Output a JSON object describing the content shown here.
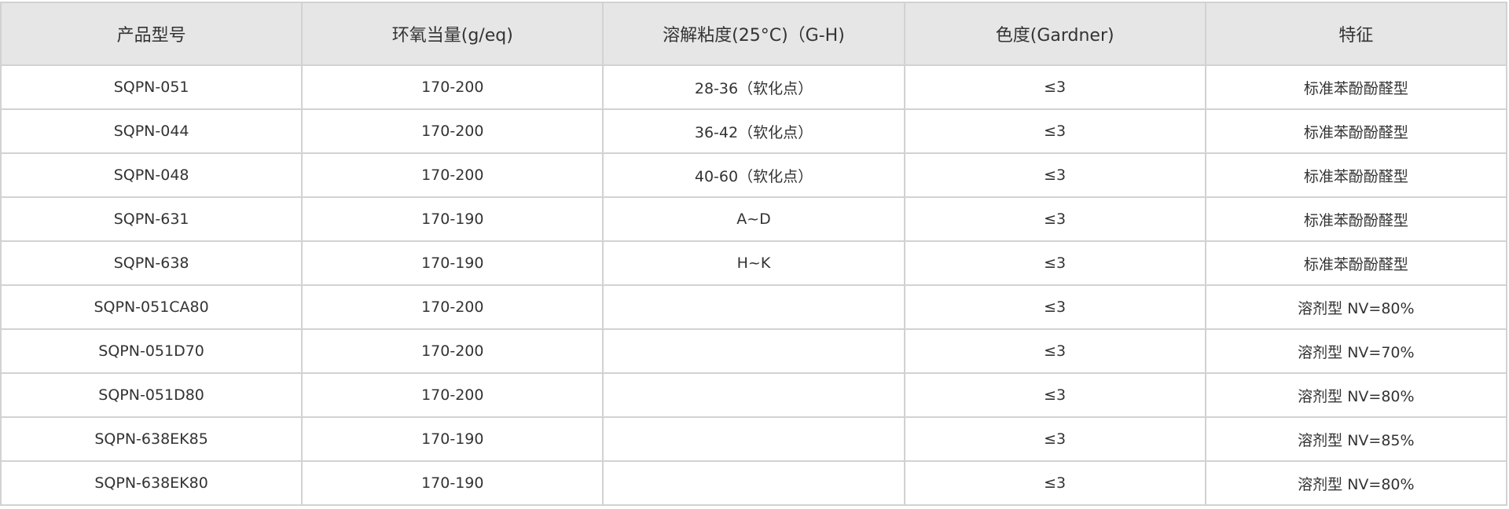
{
  "table": {
    "headers": [
      "产品型号",
      "环氧当量(g/eq)",
      "溶解粘度(25°C)（G-H)",
      "色度(Gardner)",
      "特征"
    ],
    "rows": [
      [
        "SQPN-051",
        "170-200",
        "28-36（软化点）",
        "≤3",
        "标准苯酚酚醛型"
      ],
      [
        "SQPN-044",
        "170-200",
        "36-42（软化点）",
        "≤3",
        "标准苯酚酚醛型"
      ],
      [
        "SQPN-048",
        "170-200",
        "40-60（软化点）",
        "≤3",
        "标准苯酚酚醛型"
      ],
      [
        "SQPN-631",
        "170-190",
        "A~D",
        "≤3",
        "标准苯酚酚醛型"
      ],
      [
        "SQPN-638",
        "170-190",
        "H~K",
        "≤3",
        "标准苯酚酚醛型"
      ],
      [
        "SQPN-051CA80",
        "170-200",
        "",
        "≤3",
        "溶剂型 NV=80%"
      ],
      [
        "SQPN-051D70",
        "170-200",
        "",
        "≤3",
        "溶剂型 NV=70%"
      ],
      [
        "SQPN-051D80",
        "170-200",
        "",
        "≤3",
        "溶剂型 NV=80%"
      ],
      [
        "SQPN-638EK85",
        "170-190",
        "",
        "≤3",
        "溶剂型 NV=85%"
      ],
      [
        "SQPN-638EK80",
        "170-190",
        "",
        "≤3",
        "溶剂型 NV=80%"
      ]
    ]
  }
}
